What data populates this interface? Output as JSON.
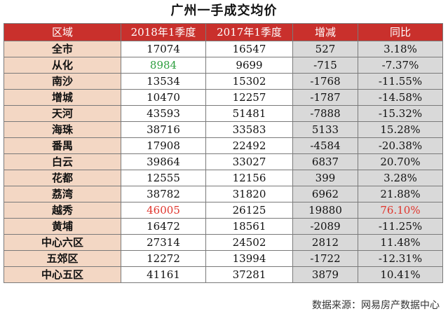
{
  "title": "广州一手成交均价",
  "headers": [
    "区域",
    "2018年1季度",
    "2017年1季度",
    "增减",
    "同比"
  ],
  "rows": [
    [
      "全市",
      "17074",
      "16547",
      "527",
      "3.18%"
    ],
    [
      "从化",
      "8984",
      "9699",
      "-715",
      "-7.37%"
    ],
    [
      "南沙",
      "13534",
      "15302",
      "-1768",
      "-11.55%"
    ],
    [
      "增城",
      "10470",
      "12257",
      "-1787",
      "-14.58%"
    ],
    [
      "天河",
      "43593",
      "51481",
      "-7888",
      "-15.32%"
    ],
    [
      "海珠",
      "38716",
      "33583",
      "5133",
      "15.28%"
    ],
    [
      "番禺",
      "17908",
      "22492",
      "-4584",
      "-20.38%"
    ],
    [
      "白云",
      "39864",
      "33027",
      "6837",
      "20.70%"
    ],
    [
      "花都",
      "12555",
      "12156",
      "399",
      "3.28%"
    ],
    [
      "荔湾",
      "38782",
      "31820",
      "6962",
      "21.88%"
    ],
    [
      "越秀",
      "46005",
      "26125",
      "19880",
      "76.10%"
    ],
    [
      "黄埔",
      "16472",
      "18561",
      "-2089",
      "-11.25%"
    ],
    [
      "中心六区",
      "27314",
      "24502",
      "2812",
      "11.48%"
    ],
    [
      "五郊区",
      "12272",
      "13994",
      "-1722",
      "-12.31%"
    ],
    [
      "中心五区",
      "41161",
      "37281",
      "3879",
      "10.41%"
    ]
  ],
  "highlights": [
    {
      "row": 1,
      "col": 1,
      "color": "#2e9e3f"
    },
    {
      "row": 10,
      "col": 1,
      "color": "#e0342c"
    },
    {
      "row": 10,
      "col": 4,
      "color": "#e0342c"
    }
  ],
  "colors": {
    "header_bg": "#c9302c",
    "region_bg": "#f3d7c4",
    "calc_bg": "#d9d9d9"
  },
  "source": "数据来源：网易房产数据中心"
}
